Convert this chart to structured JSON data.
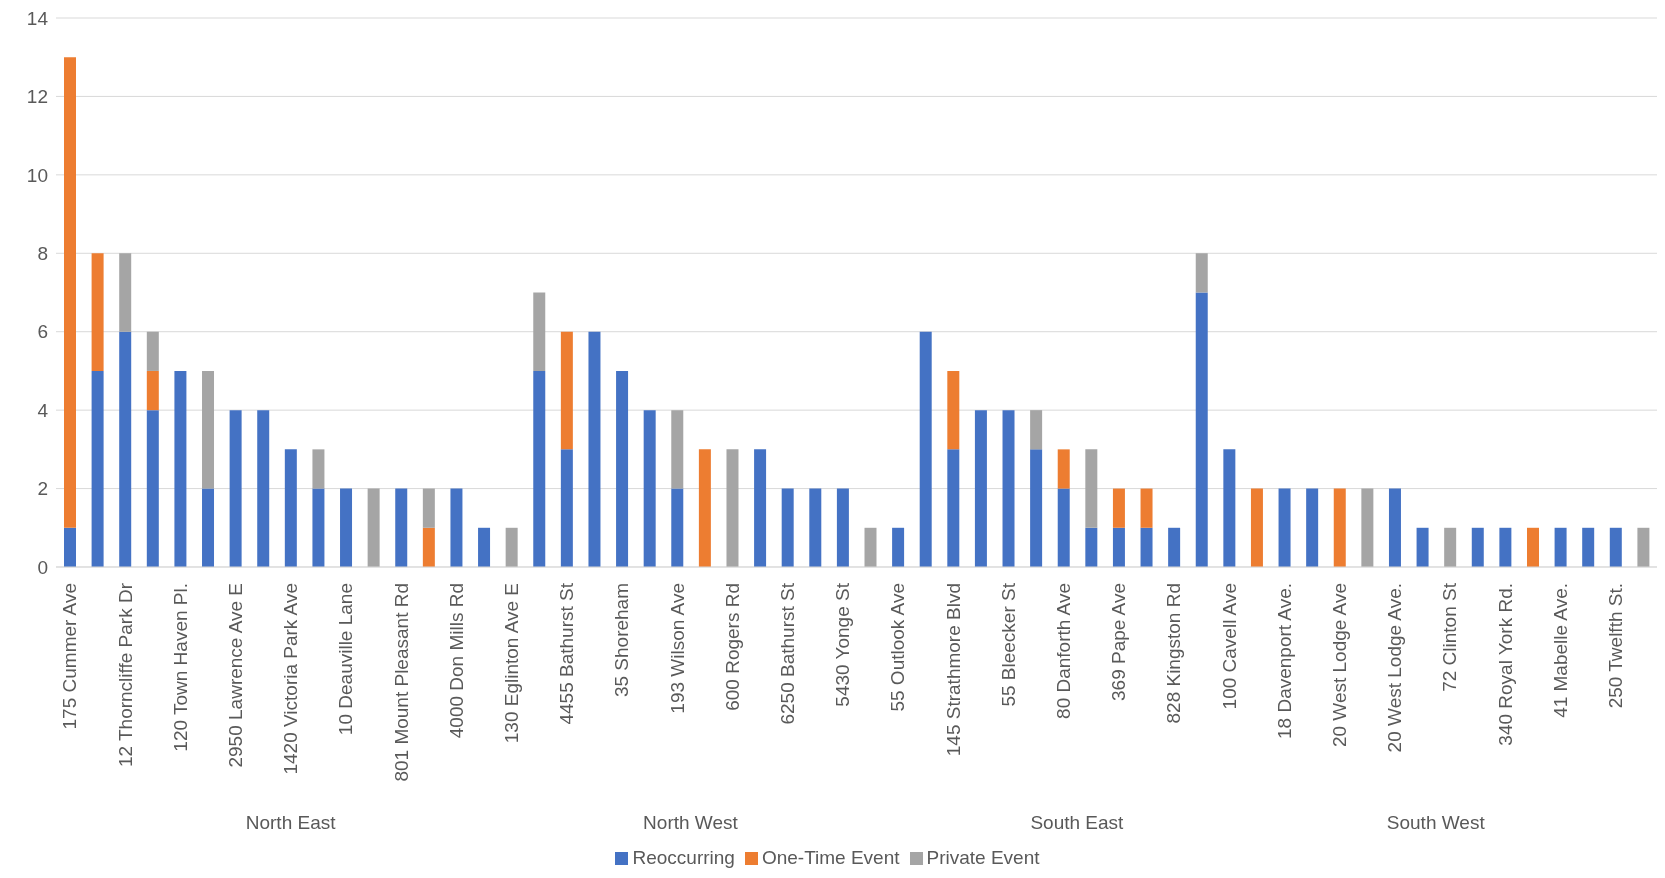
{
  "chart_data": {
    "type": "bar",
    "stacked": true,
    "categories": [
      "175 Cummer Ave",
      null,
      "12 Thorncliffe Park Dr",
      null,
      "120 Town Haven Pl.",
      null,
      "2950 Lawrence Ave E",
      null,
      "1420 Victoria Park Ave",
      null,
      "10 Deauville Lane",
      null,
      "801 Mount Pleasant Rd",
      null,
      "4000 Don Mills Rd",
      null,
      "130 Eglinton Ave E",
      null,
      "4455 Bathurst St",
      null,
      "35 Shoreham",
      null,
      "193 Wilson Ave",
      null,
      "600 Rogers Rd",
      null,
      "6250 Bathurst St",
      null,
      "5430 Yonge St",
      null,
      "55 Outlook Ave",
      null,
      "145 Strathmore Blvd",
      null,
      "55 Bleecker St",
      null,
      "80 Danforth Ave",
      null,
      "369 Pape Ave",
      null,
      "828 Kingston Rd",
      null,
      "100 Cavell Ave",
      null,
      "18 Davenport Ave.",
      null,
      "20 West Lodge Ave",
      null,
      "20 West Lodge Ave.",
      null,
      "72 Clinton St",
      null,
      "340 Royal York Rd.",
      null,
      "41 Mabelle Ave.",
      null,
      "250 Twelfth St.",
      null
    ],
    "series": [
      {
        "name": "Reoccurring",
        "color": "#4472c4",
        "values": [
          1,
          5,
          6,
          4,
          5,
          2,
          4,
          4,
          3,
          2,
          2,
          null,
          2,
          null,
          2,
          1,
          null,
          5,
          3,
          6,
          5,
          4,
          2,
          null,
          null,
          3,
          2,
          2,
          2,
          null,
          1,
          6,
          3,
          4,
          4,
          3,
          2,
          1,
          1,
          1,
          1,
          7,
          3,
          null,
          2,
          2,
          null,
          null,
          2,
          1,
          null,
          1,
          1,
          null,
          1,
          1,
          1,
          null
        ]
      },
      {
        "name": "One-Time Event",
        "color": "#ed7d31",
        "values": [
          12,
          3,
          null,
          1,
          null,
          null,
          null,
          null,
          null,
          null,
          null,
          null,
          null,
          1,
          null,
          null,
          null,
          null,
          3,
          null,
          null,
          null,
          null,
          3,
          null,
          null,
          null,
          null,
          null,
          null,
          null,
          null,
          2,
          null,
          null,
          null,
          1,
          null,
          1,
          1,
          null,
          null,
          null,
          2,
          null,
          null,
          2,
          null,
          null,
          null,
          null,
          null,
          null,
          1,
          null,
          null,
          null,
          null
        ]
      },
      {
        "name": "Private Event",
        "color": "#a5a5a5",
        "values": [
          null,
          null,
          2,
          1,
          null,
          3,
          null,
          null,
          null,
          1,
          null,
          2,
          null,
          1,
          null,
          null,
          1,
          2,
          null,
          null,
          null,
          null,
          2,
          null,
          3,
          null,
          null,
          null,
          null,
          1,
          null,
          null,
          null,
          null,
          null,
          1,
          null,
          2,
          null,
          null,
          null,
          1,
          null,
          null,
          null,
          null,
          null,
          2,
          null,
          null,
          1,
          null,
          null,
          null,
          null,
          null,
          null,
          1
        ]
      }
    ],
    "ylim": [
      0,
      14
    ],
    "yticks": [
      0,
      2,
      4,
      6,
      8,
      10,
      12,
      14
    ],
    "grid": "y",
    "legend": "bottom",
    "annotations": [
      "North East",
      "North West",
      "South East",
      "South West"
    ]
  }
}
